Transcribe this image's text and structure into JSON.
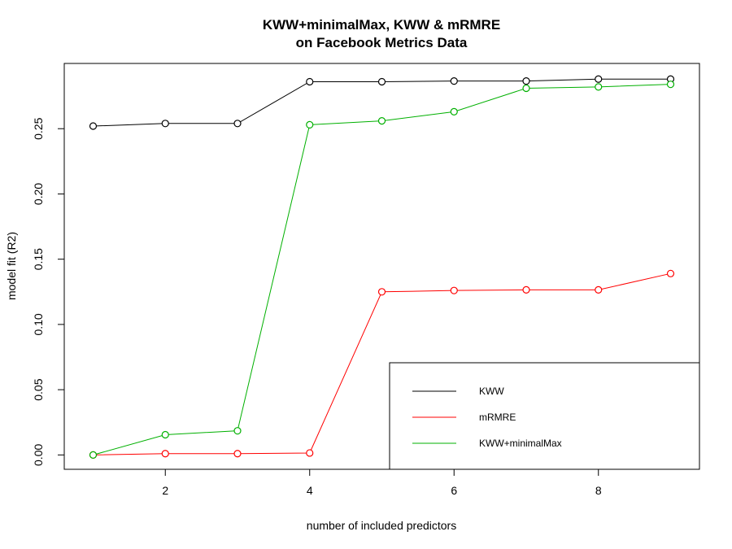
{
  "chart_data": {
    "type": "line",
    "title_line1": "KWW+minimalMax, KWW & mRMRE",
    "title_line2": "on Facebook Metrics Data",
    "xlabel": "number of included predictors",
    "ylabel": "model fit (R2)",
    "x": [
      1,
      2,
      3,
      4,
      5,
      6,
      7,
      8,
      9
    ],
    "xlim": [
      0.6,
      9.4
    ],
    "ylim": [
      -0.011,
      0.3
    ],
    "xticks": [
      2,
      4,
      6,
      8
    ],
    "yticks": [
      0.0,
      0.05,
      0.1,
      0.15,
      0.2,
      0.25
    ],
    "ytick_labels": [
      "0.00",
      "0.05",
      "0.10",
      "0.15",
      "0.20",
      "0.25"
    ],
    "grid": false,
    "legend_position": "bottom-right",
    "series": [
      {
        "name": "KWW",
        "color": "#000000",
        "values": [
          0.252,
          0.254,
          0.254,
          0.286,
          0.286,
          0.2865,
          0.2865,
          0.288,
          0.288
        ]
      },
      {
        "name": "mRMRE",
        "color": "#ff0000",
        "values": [
          0.0,
          0.001,
          0.001,
          0.0015,
          0.125,
          0.126,
          0.1265,
          0.1265,
          0.139
        ]
      },
      {
        "name": "KWW+minimalMax",
        "color": "#00b000",
        "values": [
          0.0,
          0.0155,
          0.0185,
          0.253,
          0.256,
          0.263,
          0.281,
          0.282,
          0.284
        ]
      }
    ]
  }
}
